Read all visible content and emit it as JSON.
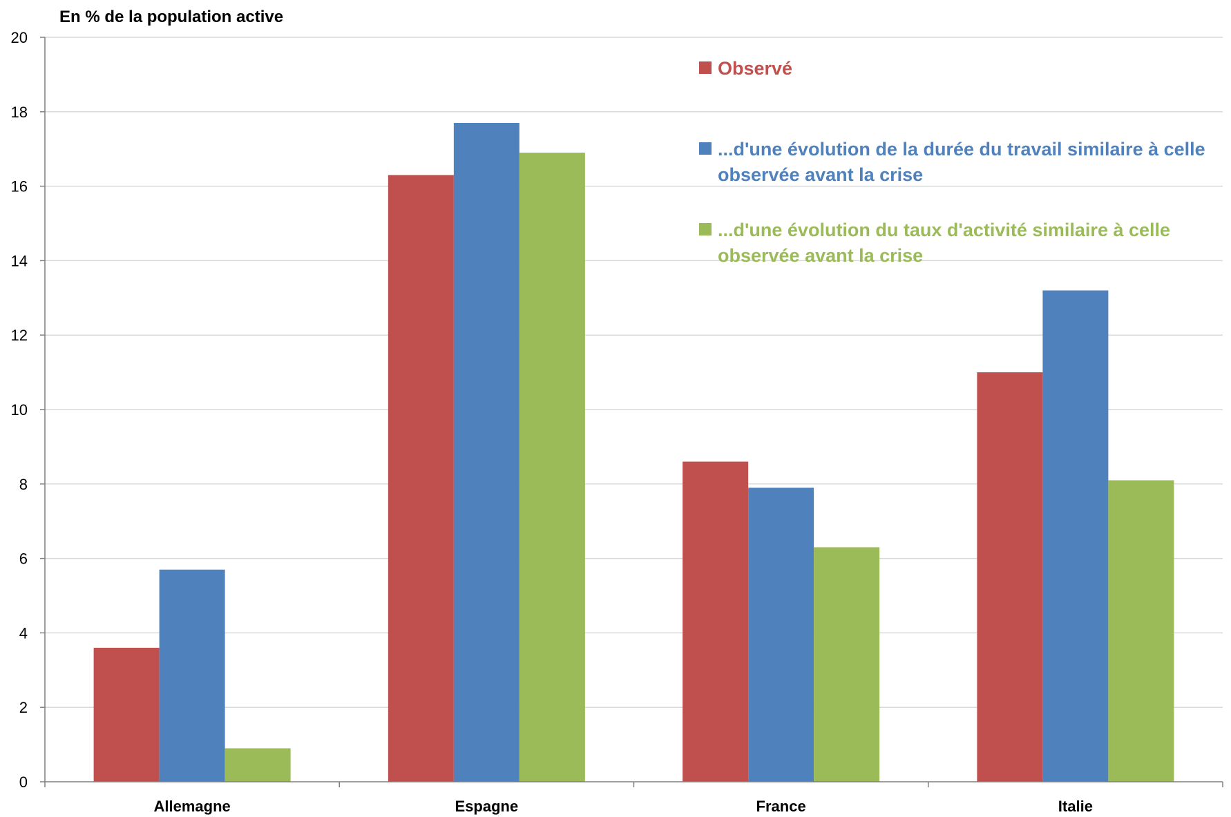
{
  "chart_data": {
    "type": "bar",
    "ylabel": "En % de la population active",
    "ylim": [
      0,
      20
    ],
    "yticks": [
      0,
      2,
      4,
      6,
      8,
      10,
      12,
      14,
      16,
      18,
      20
    ],
    "grid": true,
    "legend_position": "top-right",
    "categories": [
      "Allemagne",
      "Espagne",
      "France",
      "Italie"
    ],
    "series": [
      {
        "name": "Observé",
        "name_lines": [
          "Observé"
        ],
        "color": "#C0504D",
        "values": [
          3.6,
          16.3,
          8.6,
          11.0
        ]
      },
      {
        "name": "...d'une évolution de la durée du travail similaire à celle observée avant la crise",
        "name_lines": [
          "...d'une évolution de la durée du travail similaire à celle",
          "observée avant la crise"
        ],
        "color": "#4F81BD",
        "values": [
          5.7,
          17.7,
          7.9,
          13.2
        ]
      },
      {
        "name": "...d'une évolution du taux d'activité similaire à celle observée avant la crise",
        "name_lines": [
          "...d'une évolution du taux d'activité similaire à celle",
          "observée avant la crise"
        ],
        "color": "#9BBB59",
        "values": [
          0.9,
          16.9,
          6.3,
          8.1
        ]
      }
    ]
  }
}
